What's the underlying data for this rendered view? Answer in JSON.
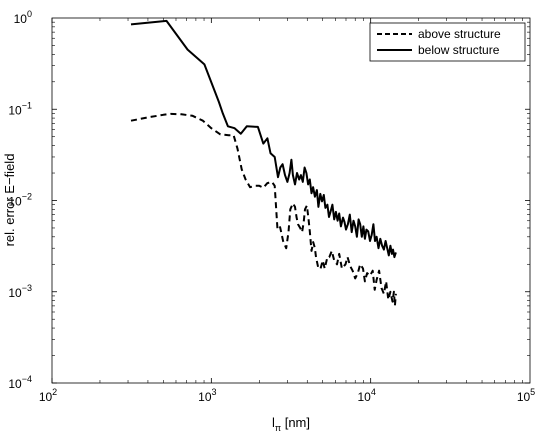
{
  "chart_data": {
    "type": "line",
    "title": "",
    "xlabel": "l",
    "xlabel_sub": "π",
    "xlabel_unit": " [nm]",
    "ylabel": "rel. error E−field",
    "xscale": "log",
    "yscale": "log",
    "xlim": [
      100,
      100000
    ],
    "ylim": [
      0.0001,
      1
    ],
    "grid": false,
    "legend_position": "top-right",
    "x_ticks": [
      {
        "value": 100,
        "base": "10",
        "exp": "2"
      },
      {
        "value": 1000,
        "base": "10",
        "exp": "3"
      },
      {
        "value": 10000,
        "base": "10",
        "exp": "4"
      },
      {
        "value": 100000,
        "base": "10",
        "exp": "5"
      }
    ],
    "y_ticks": [
      {
        "value": 0.0001,
        "base": "10",
        "exp": "−4"
      },
      {
        "value": 0.001,
        "base": "10",
        "exp": "−3"
      },
      {
        "value": 0.01,
        "base": "10",
        "exp": "−2"
      },
      {
        "value": 0.1,
        "base": "10",
        "exp": "−1"
      },
      {
        "value": 1,
        "base": "10",
        "exp": "0"
      }
    ],
    "series": [
      {
        "name": "above structure",
        "style": "dashed",
        "color": "#000000",
        "points": [
          [
            313,
            0.075
          ],
          [
            409,
            0.082
          ],
          [
            500,
            0.087
          ],
          [
            556,
            0.089
          ],
          [
            649,
            0.088
          ],
          [
            760,
            0.085
          ],
          [
            885,
            0.075
          ],
          [
            1000,
            0.062
          ],
          [
            1140,
            0.053
          ],
          [
            1286,
            0.052
          ],
          [
            1380,
            0.052
          ],
          [
            1460,
            0.037
          ],
          [
            1550,
            0.022
          ],
          [
            1640,
            0.017
          ],
          [
            1750,
            0.014
          ],
          [
            1880,
            0.0145
          ],
          [
            2000,
            0.0145
          ],
          [
            2120,
            0.0138
          ],
          [
            2250,
            0.0155
          ],
          [
            2400,
            0.016
          ],
          [
            2500,
            0.0145
          ],
          [
            2600,
            0.0048
          ],
          [
            2700,
            0.0051
          ],
          [
            2820,
            0.0036
          ],
          [
            2950,
            0.003
          ],
          [
            3050,
            0.0045
          ],
          [
            3130,
            0.008
          ],
          [
            3250,
            0.0093
          ],
          [
            3350,
            0.0085
          ],
          [
            3430,
            0.0065
          ],
          [
            3500,
            0.0055
          ],
          [
            3610,
            0.005
          ],
          [
            3710,
            0.0045
          ],
          [
            3800,
            0.0058
          ],
          [
            3870,
            0.008
          ],
          [
            3980,
            0.0088
          ],
          [
            4070,
            0.0063
          ],
          [
            4150,
            0.0046
          ],
          [
            4250,
            0.0028
          ],
          [
            4360,
            0.0035
          ],
          [
            4470,
            0.003
          ],
          [
            4540,
            0.0024
          ],
          [
            4700,
            0.0018
          ],
          [
            4850,
            0.0018
          ],
          [
            5000,
            0.0022
          ],
          [
            5150,
            0.0018
          ],
          [
            5350,
            0.0024
          ],
          [
            5500,
            0.0024
          ],
          [
            5700,
            0.0028
          ],
          [
            5900,
            0.0022
          ],
          [
            6150,
            0.002
          ],
          [
            6350,
            0.0026
          ],
          [
            6600,
            0.0018
          ],
          [
            6950,
            0.002
          ],
          [
            7150,
            0.0024
          ],
          [
            7450,
            0.0019
          ],
          [
            7700,
            0.0017
          ],
          [
            8000,
            0.0014
          ],
          [
            8300,
            0.0016
          ],
          [
            8600,
            0.002
          ],
          [
            8950,
            0.0018
          ],
          [
            9200,
            0.0013
          ],
          [
            9500,
            0.0016
          ],
          [
            9900,
            0.0015
          ],
          [
            10300,
            0.0017
          ],
          [
            10600,
            0.00105
          ],
          [
            10900,
            0.00135
          ],
          [
            11300,
            0.0017
          ],
          [
            11700,
            0.0011
          ],
          [
            12100,
            0.00095
          ],
          [
            12500,
            0.0013
          ],
          [
            12900,
            0.00082
          ],
          [
            13300,
            0.001
          ],
          [
            13700,
            0.00078
          ],
          [
            14000,
            0.001
          ],
          [
            14200,
            0.0007
          ],
          [
            14400,
            0.00095
          ]
        ]
      },
      {
        "name": "below structure",
        "style": "solid",
        "color": "#000000",
        "points": [
          [
            313,
            0.85
          ],
          [
            523,
            0.93
          ],
          [
            710,
            0.45
          ],
          [
            905,
            0.31
          ],
          [
            1115,
            0.12
          ],
          [
            1180,
            0.09
          ],
          [
            1270,
            0.065
          ],
          [
            1400,
            0.062
          ],
          [
            1530,
            0.054
          ],
          [
            1670,
            0.065
          ],
          [
            1960,
            0.064
          ],
          [
            2120,
            0.042
          ],
          [
            2250,
            0.048
          ],
          [
            2350,
            0.033
          ],
          [
            2500,
            0.03
          ],
          [
            2620,
            0.018
          ],
          [
            2710,
            0.023
          ],
          [
            2800,
            0.025
          ],
          [
            2900,
            0.019
          ],
          [
            3000,
            0.016
          ],
          [
            3100,
            0.02
          ],
          [
            3180,
            0.028
          ],
          [
            3250,
            0.019
          ],
          [
            3350,
            0.015
          ],
          [
            3450,
            0.02
          ],
          [
            3560,
            0.017
          ],
          [
            3650,
            0.019
          ],
          [
            3750,
            0.016
          ],
          [
            3850,
            0.023
          ],
          [
            3950,
            0.02
          ],
          [
            4050,
            0.015
          ],
          [
            4150,
            0.017
          ],
          [
            4250,
            0.012
          ],
          [
            4350,
            0.014
          ],
          [
            4470,
            0.011
          ],
          [
            4600,
            0.013
          ],
          [
            4700,
            0.0085
          ],
          [
            4830,
            0.0118
          ],
          [
            4950,
            0.0098
          ],
          [
            5080,
            0.0115
          ],
          [
            5200,
            0.0083
          ],
          [
            5350,
            0.009
          ],
          [
            5480,
            0.0066
          ],
          [
            5600,
            0.0075
          ],
          [
            5750,
            0.009
          ],
          [
            5900,
            0.0062
          ],
          [
            6050,
            0.0075
          ],
          [
            6200,
            0.006
          ],
          [
            6350,
            0.0072
          ],
          [
            6500,
            0.0052
          ],
          [
            6700,
            0.0065
          ],
          [
            6850,
            0.0058
          ],
          [
            7000,
            0.0048
          ],
          [
            7200,
            0.0055
          ],
          [
            7400,
            0.007
          ],
          [
            7600,
            0.0045
          ],
          [
            7800,
            0.006
          ],
          [
            8000,
            0.0052
          ],
          [
            8200,
            0.004
          ],
          [
            8400,
            0.0062
          ],
          [
            8600,
            0.0055
          ],
          [
            8800,
            0.004
          ],
          [
            9000,
            0.0052
          ],
          [
            9200,
            0.0038
          ],
          [
            9400,
            0.0048
          ],
          [
            9650,
            0.0046
          ],
          [
            9900,
            0.0036
          ],
          [
            10150,
            0.0042
          ],
          [
            10400,
            0.0055
          ],
          [
            10650,
            0.0036
          ],
          [
            10900,
            0.004
          ],
          [
            11200,
            0.003
          ],
          [
            11500,
            0.0038
          ],
          [
            11800,
            0.0032
          ],
          [
            12100,
            0.0029
          ],
          [
            12400,
            0.0036
          ],
          [
            12700,
            0.003
          ],
          [
            13000,
            0.0025
          ],
          [
            13300,
            0.0032
          ],
          [
            13600,
            0.0026
          ],
          [
            13800,
            0.0029
          ],
          [
            14100,
            0.0024
          ],
          [
            14400,
            0.0027
          ]
        ]
      }
    ]
  }
}
